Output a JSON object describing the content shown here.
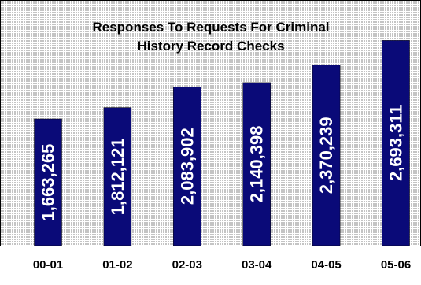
{
  "chart_data": {
    "type": "bar",
    "title": "Responses To Requests For Criminal History Record Checks",
    "title_lines": [
      "Responses To Requests For Criminal",
      "History Record Checks"
    ],
    "categories": [
      "00-01",
      "01-02",
      "02-03",
      "03-04",
      "04-05",
      "05-06"
    ],
    "values": [
      1663265,
      1812121,
      2083902,
      2140398,
      2370239,
      2693311
    ],
    "value_labels": [
      "1,663,265",
      "1,812,121",
      "2,083,902",
      "2,140,398",
      "2,370,239",
      "2,693,311"
    ],
    "xlabel": "",
    "ylabel": "",
    "ylim": [
      0,
      3100000
    ],
    "grid": false,
    "legend": "none",
    "bar_color": "#0a0a78",
    "background_color": "#d4d4d4"
  }
}
